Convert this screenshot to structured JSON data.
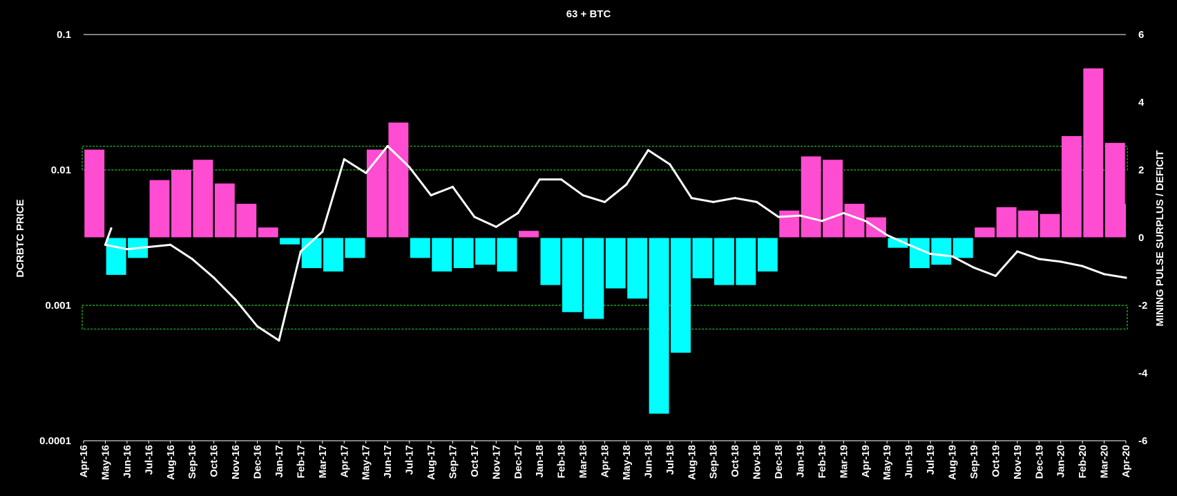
{
  "chart_data": {
    "type": "bar+line",
    "title": "63 + BTC",
    "ylabel_left": "DCRBTC PRICE",
    "ylabel_right": "MINING PULSE SURPLUS / DEFICIT",
    "y_left": {
      "scale": "log",
      "lim": [
        0.0001,
        0.1
      ],
      "ticks": [
        "0.1",
        "0.01",
        "0.001",
        "0.0001"
      ]
    },
    "y_right": {
      "scale": "linear",
      "lim": [
        -6,
        6
      ],
      "ticks": [
        6,
        4,
        2,
        0,
        -2,
        -4,
        -6
      ]
    },
    "months": [
      "Apr-16",
      "May-16",
      "Jun-16",
      "Jul-16",
      "Aug-16",
      "Sep-16",
      "Oct-16",
      "Nov-16",
      "Dec-16",
      "Jan-17",
      "Feb-17",
      "Mar-17",
      "Apr-17",
      "May-17",
      "Jun-17",
      "Jul-17",
      "Aug-17",
      "Sep-17",
      "Oct-17",
      "Nov-17",
      "Dec-17",
      "Jan-18",
      "Feb-18",
      "Mar-18",
      "Apr-18",
      "May-18",
      "Jun-18",
      "Jul-18",
      "Aug-18",
      "Sep-18",
      "Oct-18",
      "Nov-18",
      "Dec-18",
      "Jan-19",
      "Feb-19",
      "Mar-19",
      "Apr-19",
      "May-19",
      "Jun-19",
      "Jul-19",
      "Aug-19",
      "Sep-19",
      "Oct-19",
      "Nov-19",
      "Dec-19",
      "Jan-20",
      "Feb-20",
      "Mar-20",
      "Apr-20"
    ],
    "colors": {
      "surplus": "#FF4DD2",
      "deficit": "#00FFFF",
      "price_line": "#FFFFFF",
      "band": "#22CC22",
      "background": "#000000"
    },
    "grid": false,
    "bands_right_axis": [
      [
        2.0,
        2.7
      ],
      [
        -2.0,
        -2.7
      ]
    ],
    "series": [
      {
        "name": "",
        "kind": "bar",
        "axis": "right",
        "values": [
          2.6,
          -1.1,
          -0.6,
          1.7,
          2.0,
          2.3,
          1.6,
          1.0,
          0.3,
          -0.2,
          -0.9,
          -1.0,
          -0.6,
          2.6,
          3.4,
          -0.6,
          -1.0,
          -0.9,
          -0.8,
          -1.0,
          0.2,
          -1.4,
          -2.2,
          -2.4,
          -1.5,
          -1.8,
          -5.2,
          -3.4,
          -1.2,
          -1.4,
          -1.4,
          -1.0,
          0.8,
          2.4,
          2.3,
          1.0,
          0.6,
          -0.3,
          -0.9,
          -0.8,
          -0.6,
          0.3,
          0.9,
          0.8,
          0.7,
          3.0,
          5.0,
          2.8,
          1.0
        ]
      },
      {
        "name": "",
        "kind": "line",
        "axis": "left",
        "values": [
          0.0037,
          0.0028,
          0.0026,
          0.0027,
          0.0028,
          0.0022,
          0.0016,
          0.0011,
          0.0007,
          0.00055,
          0.0025,
          0.0035,
          0.012,
          0.0095,
          0.015,
          0.0105,
          0.0065,
          0.0075,
          0.0045,
          0.0038,
          0.0048,
          0.0085,
          0.0085,
          0.0065,
          0.0058,
          0.0078,
          0.014,
          0.011,
          0.0062,
          0.0058,
          0.0062,
          0.0058,
          0.0045,
          0.0046,
          0.0042,
          0.0048,
          0.0042,
          0.0033,
          0.0028,
          0.0024,
          0.0023,
          0.0019,
          0.00165,
          0.0025,
          0.0022,
          0.0021,
          0.00195,
          0.0017,
          0.0016
        ]
      }
    ]
  }
}
